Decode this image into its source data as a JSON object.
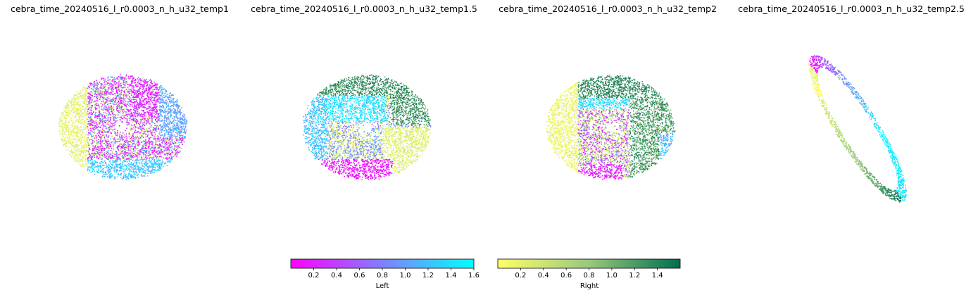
{
  "chart_data": [
    {
      "type": "scatter",
      "title": "cebra_time_20240516_l_r0.0003_n_h_u32_temp1",
      "shape": "ellipse",
      "tilt_deg": 0,
      "point_count": 5200
    },
    {
      "type": "scatter",
      "title": "cebra_time_20240516_l_r0.0003_n_h_u32_temp1.5",
      "shape": "ellipse",
      "tilt_deg": 0,
      "point_count": 5200
    },
    {
      "type": "scatter",
      "title": "cebra_time_20240516_l_r0.0003_n_h_u32_temp2",
      "shape": "ellipse",
      "tilt_deg": 0,
      "point_count": 5200
    },
    {
      "type": "scatter",
      "title": "cebra_time_20240516_l_r0.0003_n_h_u32_temp2.5",
      "shape": "ring",
      "tilt_deg": 58,
      "point_count": 1500
    }
  ],
  "colorbars": [
    {
      "label": "Left",
      "colors": [
        "#ff00ff",
        "#00ffff"
      ],
      "range": [
        0,
        1.6
      ],
      "ticks": [
        "0.2",
        "0.4",
        "0.6",
        "0.8",
        "1.0",
        "1.2",
        "1.4",
        "1.6"
      ],
      "tick_values": [
        0.2,
        0.4,
        0.6,
        0.8,
        1.0,
        1.2,
        1.4,
        1.6
      ]
    },
    {
      "label": "Right",
      "colors": [
        "#ffff66",
        "#98c97a",
        "#006e52"
      ],
      "range": [
        0,
        1.6
      ],
      "ticks": [
        "0.2",
        "0.4",
        "0.6",
        "0.8",
        "1.0",
        "1.2",
        "1.4"
      ],
      "tick_values": [
        0.2,
        0.4,
        0.6,
        0.8,
        1.0,
        1.2,
        1.4
      ]
    }
  ]
}
